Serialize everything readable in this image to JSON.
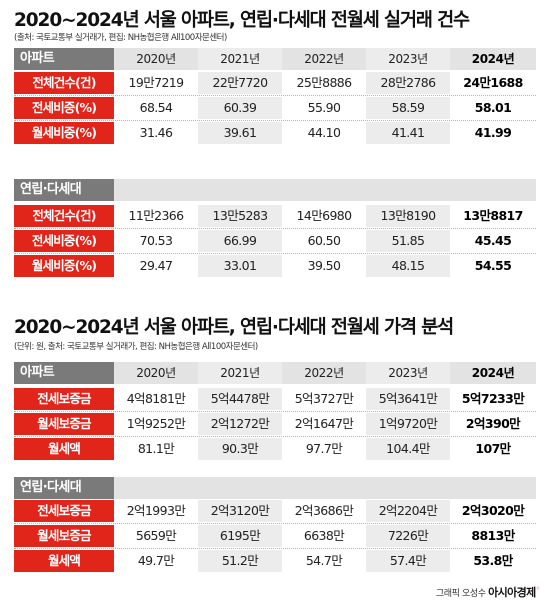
{
  "section1": {
    "title": "2020~2024년 서울 아파트, 연립·다세대 전월세 실거래 건수",
    "source": "(출처: 국토교통부 실거래가, 편집: NH농협은행 All100자문센터)",
    "apt": {
      "header": "아파트",
      "years": [
        "2020년",
        "2021년",
        "2022년",
        "2023년",
        "2024년"
      ],
      "rows": [
        {
          "label": "전체건수(건)",
          "values": [
            "19만7219",
            "22만7720",
            "25만8886",
            "28만2786",
            "24만1688"
          ]
        },
        {
          "label": "전세비중(%)",
          "values": [
            "68.54",
            "60.39",
            "55.90",
            "58.59",
            "58.01"
          ]
        },
        {
          "label": "월세비중(%)",
          "values": [
            "31.46",
            "39.61",
            "44.10",
            "41.41",
            "41.99"
          ]
        }
      ]
    },
    "villa": {
      "header": "연립·다세대",
      "rows": [
        {
          "label": "전체건수(건)",
          "values": [
            "11만2366",
            "13만5283",
            "14만6980",
            "13만8190",
            "13만8817"
          ]
        },
        {
          "label": "전세비중(%)",
          "values": [
            "70.53",
            "66.99",
            "60.50",
            "51.85",
            "45.45"
          ]
        },
        {
          "label": "월세비중(%)",
          "values": [
            "29.47",
            "33.01",
            "39.50",
            "48.15",
            "54.55"
          ]
        }
      ]
    }
  },
  "section2": {
    "title": "2020~2024년 서울 아파트, 연립·다세대 전월세 가격 분석",
    "source": "(단위: 원, 출처: 국토교통부 실거래가, 편집: NH농협은행 All100자문센터)",
    "apt": {
      "header": "아파트",
      "years": [
        "2020년",
        "2021년",
        "2022년",
        "2023년",
        "2024년"
      ],
      "rows": [
        {
          "label": "전세보증금",
          "values": [
            "4억8181만",
            "5억4478만",
            "5억3727만",
            "5억3641만",
            "5억7233만"
          ]
        },
        {
          "label": "월세보증금",
          "values": [
            "1억9252만",
            "2억1272만",
            "2억1647만",
            "1억9720만",
            "2억390만"
          ]
        },
        {
          "label": "월세액",
          "values": [
            "81.1만",
            "90.3만",
            "97.7만",
            "104.4만",
            "107만"
          ]
        }
      ]
    },
    "villa": {
      "header": "연립·다세대",
      "rows": [
        {
          "label": "전세보증금",
          "values": [
            "2억1993만",
            "2억3120만",
            "2억3686만",
            "2억2204만",
            "2억3020만"
          ]
        },
        {
          "label": "월세보증금",
          "values": [
            "5659만",
            "6195만",
            "6638만",
            "7226만",
            "8813만"
          ]
        },
        {
          "label": "월세액",
          "values": [
            "49.7만",
            "51.2만",
            "54.7만",
            "57.4만",
            "53.8만"
          ]
        }
      ]
    }
  },
  "credit": {
    "byline": "그래픽 오성수",
    "brand": "아시아경제"
  },
  "colors": {
    "accent_red": "#e1251b",
    "header_gray": "#7a7a7a",
    "band_gray": "#e3e3e3",
    "shade_gray": "#ececec"
  }
}
